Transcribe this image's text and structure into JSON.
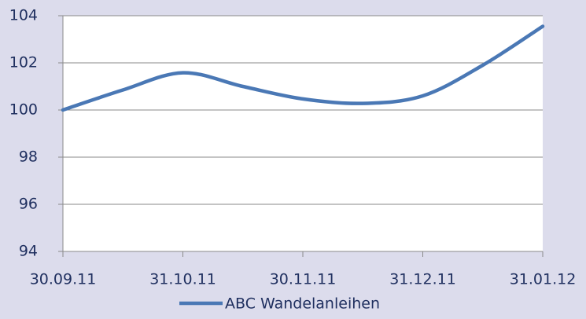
{
  "chart_data": {
    "type": "line",
    "categories": [
      "30.09.11",
      null,
      "31.10.11",
      null,
      "30.11.11",
      null,
      "31.12.11",
      null,
      "31.01.12"
    ],
    "series": [
      {
        "name": "ABC Wandelanleihen",
        "color": "#4a78b5",
        "values": [
          100.0,
          100.85,
          101.58,
          101.0,
          100.47,
          100.28,
          100.6,
          101.9,
          103.55
        ]
      }
    ],
    "ylim": [
      94,
      104
    ],
    "yticks": [
      94,
      96,
      98,
      100,
      102,
      104
    ],
    "grid": true,
    "legend": "bottom"
  }
}
